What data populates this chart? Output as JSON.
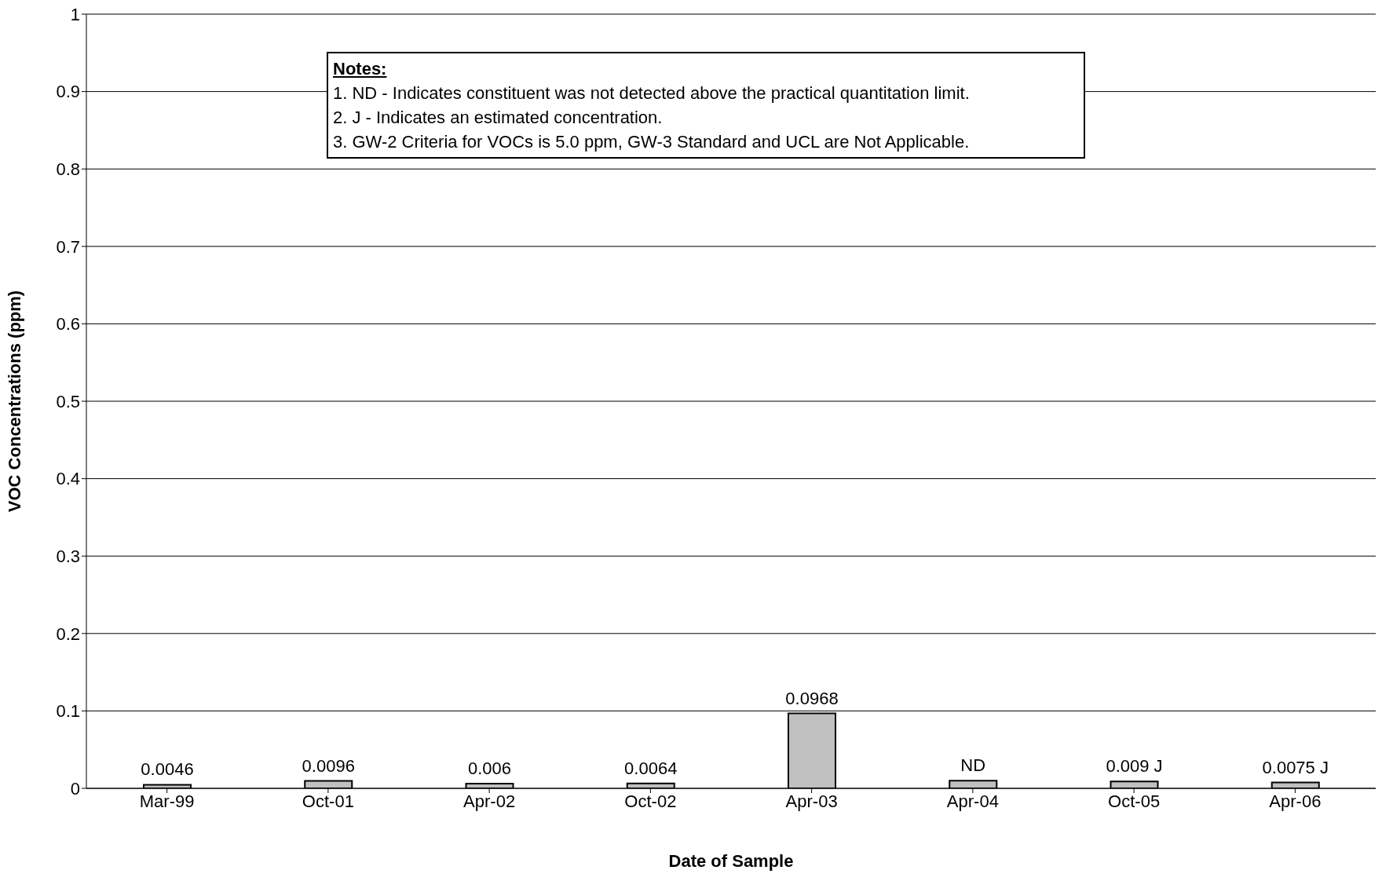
{
  "chart_data": {
    "type": "bar",
    "xlabel": "Date of Sample",
    "ylabel": "VOC Concentrations (ppm)",
    "categories": [
      "Mar-99",
      "Oct-01",
      "Apr-02",
      "Oct-02",
      "Apr-03",
      "Apr-04",
      "Oct-05",
      "Apr-06"
    ],
    "values": [
      0.0046,
      0.0096,
      0.006,
      0.0064,
      0.0968,
      0.01,
      0.009,
      0.0075
    ],
    "value_labels": [
      "0.0046",
      "0.0096",
      "0.006",
      "0.0064",
      "0.0968",
      "ND",
      "0.009 J",
      "0.0075 J"
    ],
    "color": "#c0c0c0",
    "ylim": [
      0,
      1
    ],
    "yticks": [
      0,
      0.1,
      0.2,
      0.3,
      0.4,
      0.5,
      0.6,
      0.7,
      0.8,
      0.9,
      1
    ],
    "grid": "y",
    "legend": false,
    "annotations": [
      "Notes:",
      "1.  ND - Indicates constituent was not detected above the practical quantitation limit.",
      "2.  J - Indicates an estimated concentration.",
      "3.  GW-2 Criteria for VOCs is 5.0 ppm, GW-3 Standard and UCL are Not Applicable."
    ]
  }
}
